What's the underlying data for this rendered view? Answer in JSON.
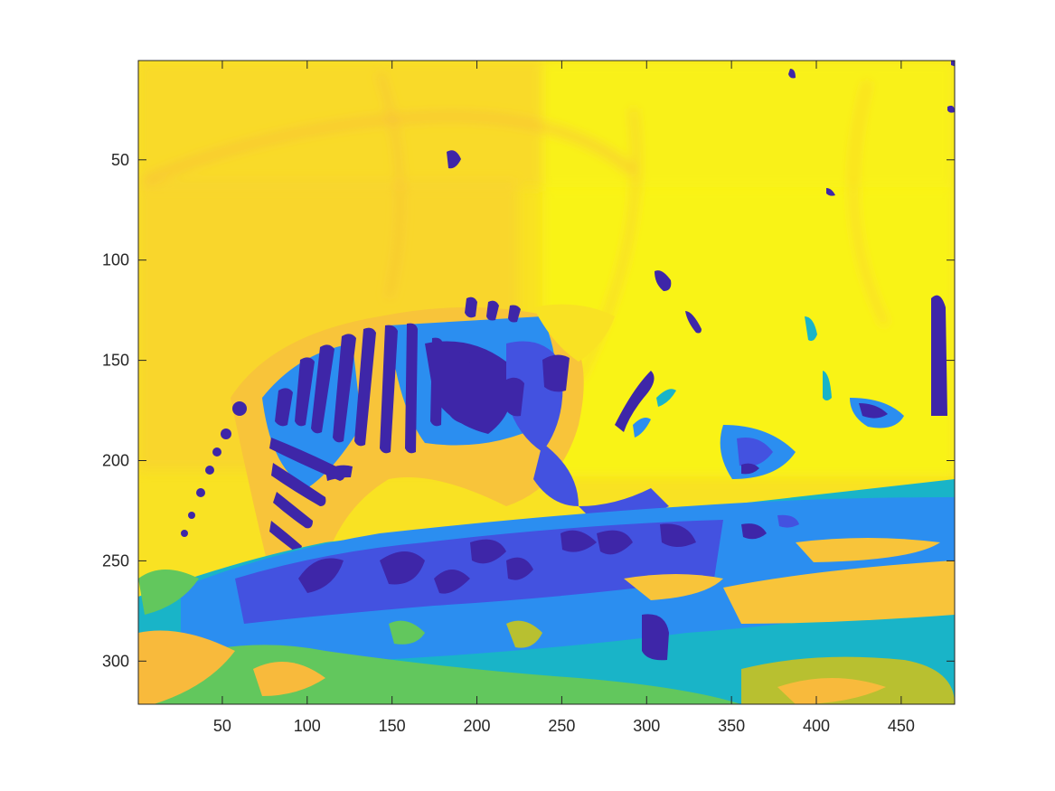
{
  "chart_data": {
    "type": "heatmap",
    "title": "",
    "xlabel": "",
    "ylabel": "",
    "xlim": [
      0.5,
      481.5
    ],
    "ylim": [
      0.5,
      321.5
    ],
    "y_direction": "reverse",
    "grid": false,
    "legend": "none",
    "colormap": [
      "#3e26a8",
      "#4352e0",
      "#2b8ef0",
      "#19b4c8",
      "#62c75d",
      "#b8c030",
      "#f8ba3c",
      "#f9d930",
      "#f9fb14"
    ],
    "x_ticks": [
      50,
      100,
      150,
      200,
      250,
      300,
      350,
      400,
      450
    ],
    "x_tick_labels": [
      "50",
      "100",
      "150",
      "200",
      "250",
      "300",
      "350",
      "400",
      "450"
    ],
    "y_ticks": [
      50,
      100,
      150,
      200,
      250,
      300
    ],
    "y_tick_labels": [
      "50",
      "100",
      "150",
      "200",
      "250",
      "300"
    ],
    "image_width": 481,
    "image_height": 321,
    "subject": "tiger",
    "regions": {
      "background": {
        "level": 8,
        "x": [
          1,
          481
        ],
        "y": [
          1,
          215
        ]
      },
      "ground_band": {
        "level": 2,
        "x": [
          1,
          481
        ],
        "y": [
          215,
          321
        ]
      },
      "ground_warm": {
        "level": 6,
        "x": [
          1,
          481
        ],
        "y": [
          280,
          321
        ]
      }
    }
  }
}
